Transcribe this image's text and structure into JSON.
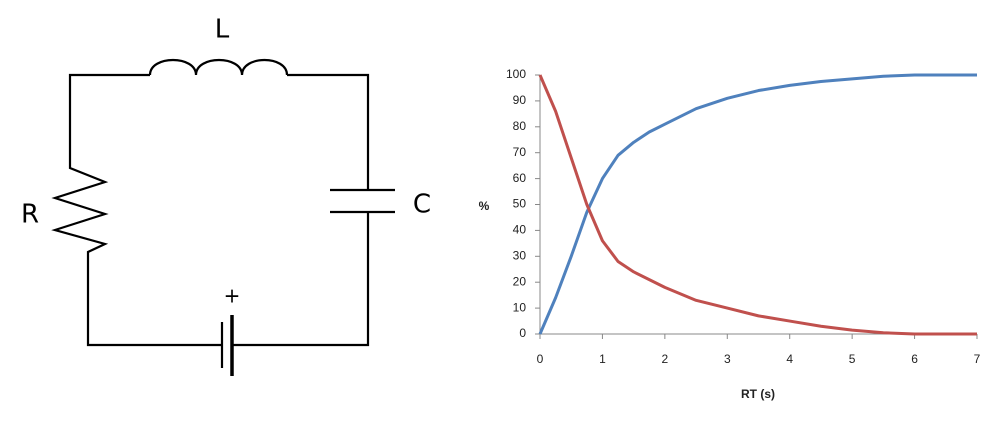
{
  "diagram": {
    "inductor_label": "L",
    "resistor_label": "R",
    "capacitor_label": "C",
    "battery_label": "+"
  },
  "chart_data": {
    "type": "line",
    "x_label": "RT (s)",
    "y_label": "%",
    "x": [
      0,
      0.25,
      0.5,
      0.75,
      1,
      1.25,
      1.5,
      1.75,
      2,
      2.5,
      3,
      3.5,
      4,
      4.5,
      5,
      5.5,
      6,
      6.5,
      7
    ],
    "series": [
      {
        "color": "#4f81bd",
        "values": [
          0,
          14,
          30,
          47,
          60,
          69,
          74,
          78,
          81,
          87,
          91,
          94,
          96,
          97.5,
          98.5,
          99.5,
          100,
          100,
          100
        ]
      },
      {
        "color": "#c0504d",
        "values": [
          100,
          86,
          68,
          50,
          36,
          28,
          24,
          21,
          18,
          13,
          10,
          7,
          5,
          3,
          1.5,
          0.5,
          0,
          0,
          0
        ]
      }
    ],
    "xlim": [
      0,
      7
    ],
    "ylim": [
      0,
      100
    ],
    "xticks": [
      0,
      1,
      2,
      3,
      4,
      5,
      6,
      7
    ],
    "yticks": [
      0,
      10,
      20,
      30,
      40,
      50,
      60,
      70,
      80,
      90,
      100
    ],
    "grid": false
  }
}
